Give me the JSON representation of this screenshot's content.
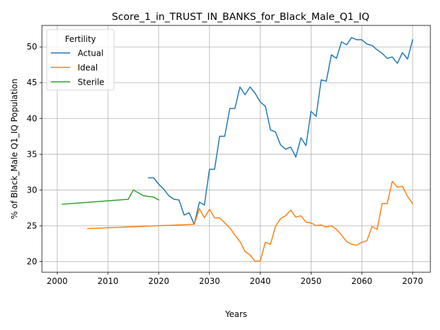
{
  "chart_data": {
    "type": "line",
    "title": "Score_1_in_TRUST_IN_BANKS_for_Black_Male_Q1_IQ",
    "xlabel": "Years",
    "ylabel": "% of Black_Male Q1_IQ Population",
    "xlim": [
      1997,
      2073.5
    ],
    "ylim": [
      18.5,
      53
    ],
    "xticks": [
      2000,
      2010,
      2020,
      2030,
      2040,
      2050,
      2060,
      2070
    ],
    "yticks": [
      20,
      25,
      30,
      35,
      40,
      45,
      50
    ],
    "grid": true,
    "legend": {
      "title": "Fertility",
      "position": "top-left"
    },
    "series": [
      {
        "name": "Actual",
        "color": "#1f77b4",
        "x": [
          2018,
          2019,
          2020,
          2021,
          2022,
          2023,
          2024,
          2025,
          2026,
          2027,
          2028,
          2029,
          2030,
          2031,
          2032,
          2033,
          2034,
          2035,
          2036,
          2037,
          2038,
          2039,
          2040,
          2041,
          2042,
          2043,
          2044,
          2045,
          2046,
          2047,
          2048,
          2049,
          2050,
          2051,
          2052,
          2053,
          2054,
          2055,
          2056,
          2057,
          2058,
          2059,
          2060,
          2061,
          2062,
          2063,
          2064,
          2065,
          2066,
          2067,
          2068,
          2069,
          2070
        ],
        "y": [
          31.7,
          31.7,
          30.8,
          30.1,
          29.2,
          28.7,
          28.6,
          26.5,
          26.8,
          25.2,
          28.3,
          27.9,
          32.9,
          32.9,
          37.5,
          37.5,
          41.4,
          41.4,
          44.4,
          43.3,
          44.4,
          43.5,
          42.3,
          41.7,
          38.4,
          38.1,
          36.3,
          35.7,
          36.0,
          34.6,
          37.3,
          36.2,
          41.0,
          40.3,
          45.4,
          45.2,
          48.9,
          48.4,
          50.7,
          50.3,
          51.3,
          51.0,
          51.0,
          50.4,
          50.2,
          49.6,
          49.1,
          48.4,
          48.6,
          47.7,
          49.2,
          48.3,
          51.0
        ]
      },
      {
        "name": "Ideal",
        "color": "#ff7f0e",
        "x": [
          2006,
          2027,
          2028,
          2029,
          2030,
          2031,
          2032,
          2033,
          2034,
          2035,
          2036,
          2037,
          2038,
          2039,
          2040,
          2041,
          2042,
          2043,
          2044,
          2045,
          2046,
          2047,
          2048,
          2049,
          2050,
          2051,
          2052,
          2053,
          2054,
          2055,
          2056,
          2057,
          2058,
          2059,
          2060,
          2061,
          2062,
          2063,
          2064,
          2065,
          2066,
          2067,
          2068,
          2069,
          2070
        ],
        "y": [
          24.6,
          25.2,
          27.4,
          26.1,
          27.3,
          26.1,
          26.1,
          25.4,
          24.7,
          23.7,
          22.8,
          21.4,
          20.9,
          20.0,
          20.1,
          22.7,
          22.4,
          24.9,
          26.0,
          26.4,
          27.2,
          26.2,
          26.4,
          25.5,
          25.4,
          25.0,
          25.1,
          24.8,
          25.0,
          24.5,
          23.7,
          22.8,
          22.4,
          22.3,
          22.7,
          22.9,
          24.9,
          24.5,
          28.1,
          28.1,
          31.2,
          30.4,
          30.5,
          29.1,
          28.1
        ]
      },
      {
        "name": "Sterile",
        "color": "#2ca02c",
        "x": [
          2001,
          2014,
          2015,
          2016,
          2017,
          2018,
          2019,
          2020
        ],
        "y": [
          28.0,
          28.7,
          30.0,
          29.6,
          29.2,
          29.1,
          29.0,
          28.6
        ]
      }
    ]
  }
}
